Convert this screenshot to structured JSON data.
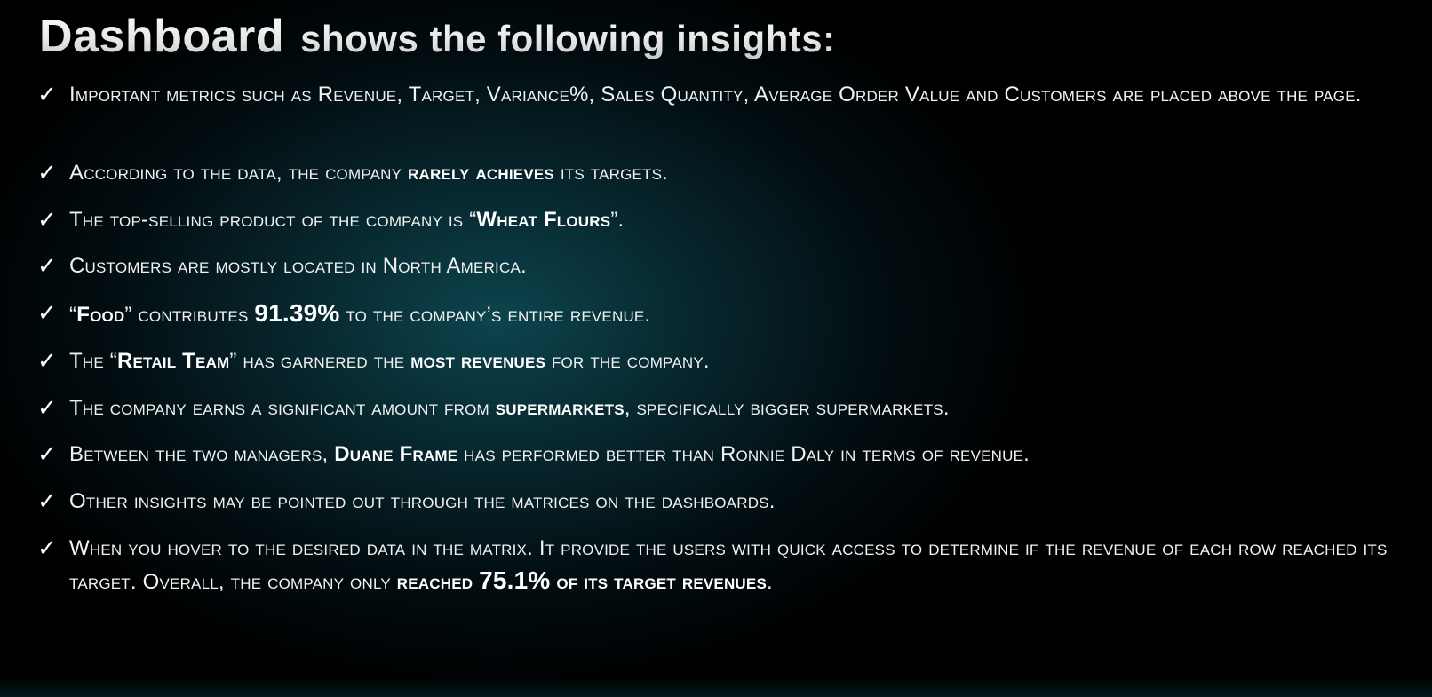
{
  "title": {
    "word_main": "Dashboard",
    "word_rest": "shows the following insights:"
  },
  "insights": [
    {
      "parts": [
        "Important metrics such as Revenue, Target, Variance%, Sales Quantity, Average Order Value and Customers are placed above the page."
      ]
    },
    {
      "parts": [
        "According to the data, the company ",
        "rarely achieves",
        " its targets."
      ]
    },
    {
      "parts": [
        "The top-selling product of the company is “",
        "Wheat Flours",
        "”."
      ]
    },
    {
      "parts": [
        "Customers are mostly located in North America."
      ]
    },
    {
      "parts": [
        "“",
        "Food",
        "” contributes ",
        "91.39%",
        " to the company’s entire revenue."
      ]
    },
    {
      "parts": [
        "The “",
        "Retail Team",
        "” has garnered the ",
        "most revenues",
        " for the company."
      ]
    },
    {
      "parts": [
        "The company earns a significant amount from ",
        "supermarkets",
        ", specifically bigger supermarkets."
      ]
    },
    {
      "parts": [
        "Between the two managers, ",
        "Duane Frame",
        " has performed better than Ronnie Daly in terms of revenue."
      ]
    },
    {
      "parts": [
        "Other insights may be pointed out through the matrices on the dashboards."
      ]
    },
    {
      "parts": [
        "When you hover to the desired data in the matrix. It provide the users with quick access to determine if the revenue of each row reached its target. Overall, the company only ",
        "reached ",
        "75.1%",
        " of its target revenues",
        "."
      ]
    }
  ],
  "bullet_icon": "checkmark-icon",
  "colors": {
    "text": "#f2f2f2",
    "background_center": "#0e4852",
    "background_edge": "#000000"
  }
}
